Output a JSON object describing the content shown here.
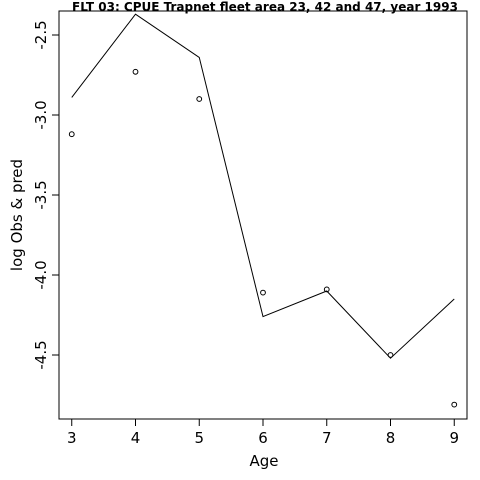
{
  "chart_data": {
    "type": "line",
    "title": "FLT 03: CPUE Trapnet fleet area 23, 42 and 47, year 1993",
    "xlabel": "Age",
    "ylabel": "log Obs & pred",
    "xlim": [
      2.8,
      9.2
    ],
    "ylim": [
      -4.9,
      -2.35
    ],
    "x_ticks": [
      3,
      4,
      5,
      6,
      7,
      8,
      9
    ],
    "y_ticks": [
      -2.5,
      -3.0,
      -3.5,
      -4.0,
      -4.5
    ],
    "x_tick_labels": [
      "3",
      "4",
      "5",
      "6",
      "7",
      "8",
      "9"
    ],
    "y_tick_labels": [
      "-2.5",
      "-3.0",
      "-3.5",
      "-4.0",
      "-4.5"
    ],
    "grid": false,
    "series": [
      {
        "style": "line",
        "x": [
          3,
          4,
          5,
          6,
          7,
          8,
          9
        ],
        "y": [
          -2.89,
          -2.37,
          -2.64,
          -4.26,
          -4.1,
          -4.52,
          -4.15
        ],
        "color": "#000000"
      },
      {
        "style": "points",
        "marker": "open-circle",
        "x": [
          3,
          4,
          5,
          6,
          7,
          8,
          9
        ],
        "y": [
          -3.12,
          -2.73,
          -2.9,
          -4.11,
          -4.09,
          -4.5,
          -4.81
        ],
        "color": "#000000"
      }
    ]
  }
}
